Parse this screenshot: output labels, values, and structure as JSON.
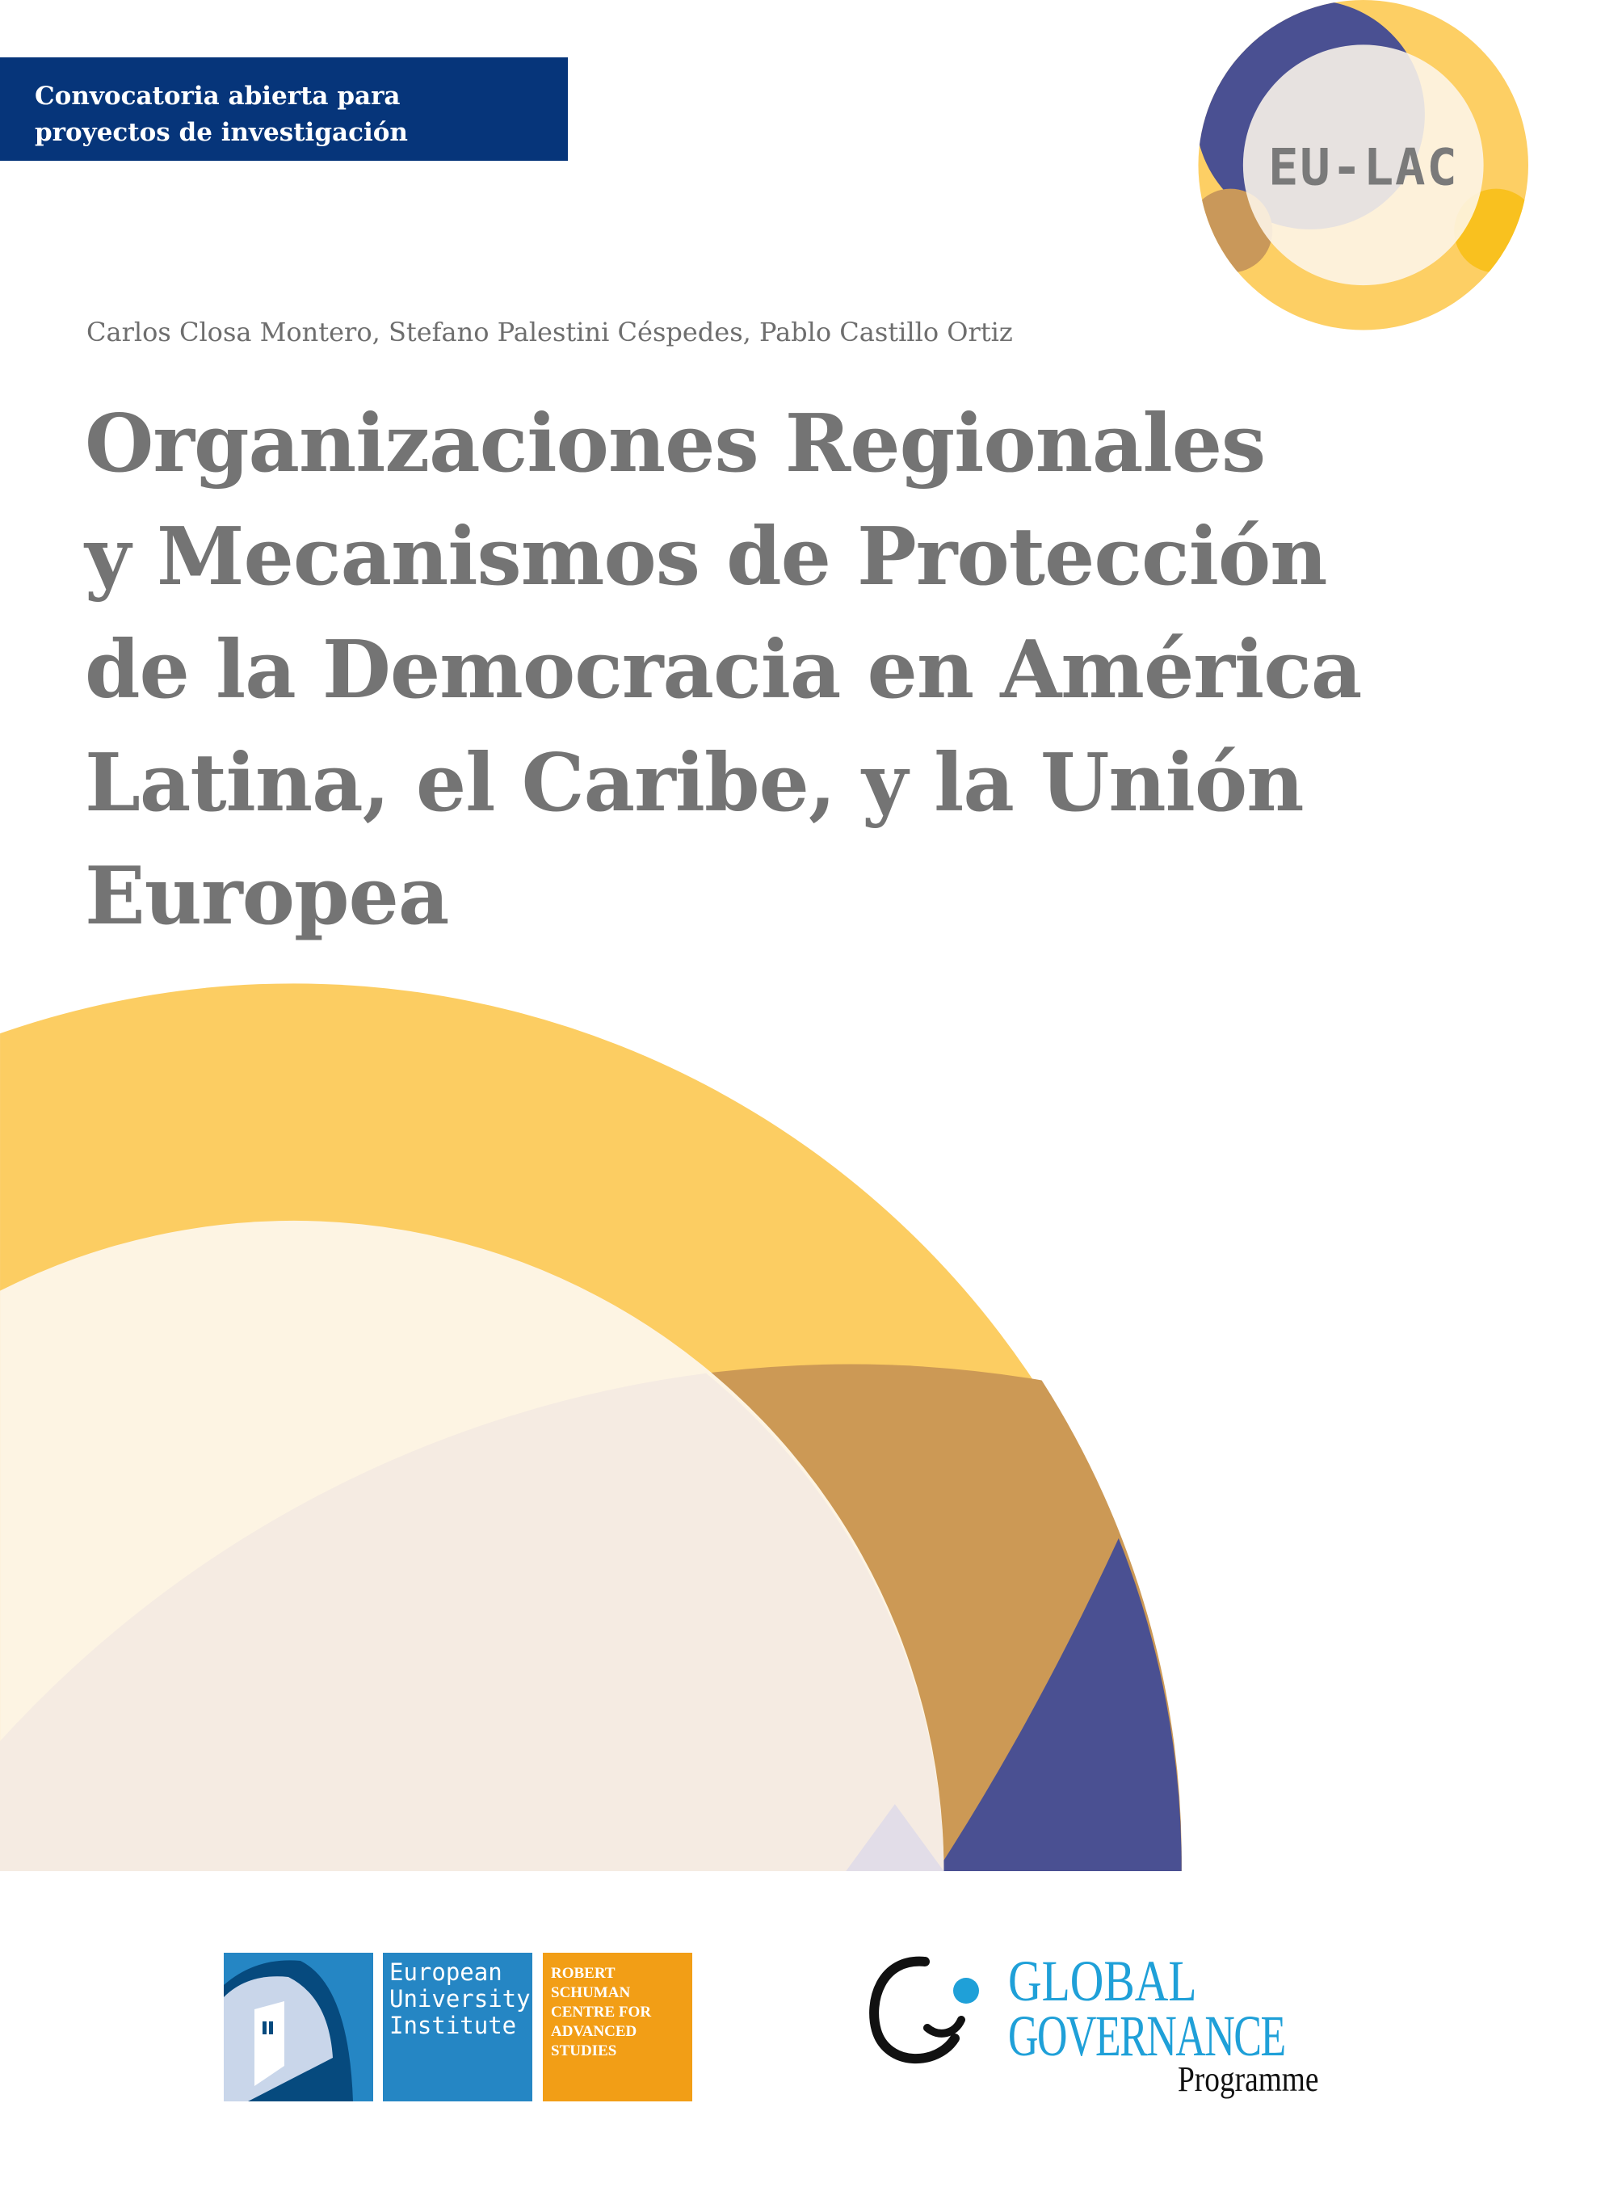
{
  "banner": {
    "lines": [
      "Convocatoria abierta para",
      "proyectos de investigación"
    ],
    "color": "#06357a"
  },
  "logo": {
    "text": "EU-LAC",
    "icon": "eu-lac-circles-logo"
  },
  "authors": "Carlos Closa Montero, Stefano Palestini Céspedes, Pablo Castillo Ortiz",
  "title": {
    "lines": [
      "Organizaciones Regionales",
      "y Mecanismos de Protección",
      "de la Democracia en América",
      "Latina, el Caribe, y la Unión",
      "Europea"
    ]
  },
  "colors": {
    "yellow": "#fccd62",
    "blue": "#4a5092",
    "tan": "#cc9955",
    "cream": "#fdf4e3",
    "title_gray": "#747474"
  },
  "footer": {
    "eui": {
      "name_lines": [
        "European",
        "University",
        "Institute"
      ],
      "centre_lines": [
        "ROBERT",
        "SCHUMAN",
        "CENTRE FOR",
        "ADVANCED",
        "STUDIES"
      ]
    },
    "ggp": {
      "line1": "GLOBAL",
      "line2": "GOVERNANCE",
      "line3": "Programme"
    }
  }
}
